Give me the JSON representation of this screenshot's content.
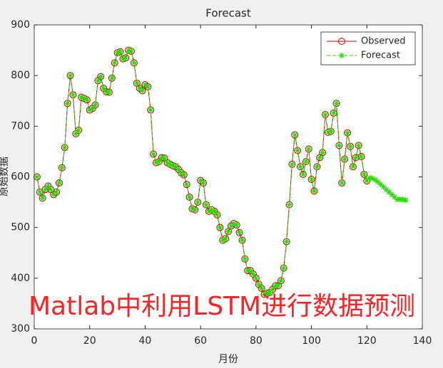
{
  "chart_data": {
    "type": "line",
    "title": "Forecast",
    "xlabel": "月份",
    "ylabel": "原始数据",
    "annotation": "Matlab中利用LSTM进行数据预测",
    "x": [
      1,
      2,
      3,
      4,
      5,
      6,
      7,
      8,
      9,
      10,
      11,
      12,
      13,
      14,
      15,
      16,
      17,
      18,
      19,
      20,
      21,
      22,
      23,
      24,
      25,
      26,
      27,
      28,
      29,
      30,
      31,
      32,
      33,
      34,
      35,
      36,
      37,
      38,
      39,
      40,
      41,
      42,
      43,
      44,
      45,
      46,
      47,
      48,
      49,
      50,
      51,
      52,
      53,
      54,
      55,
      56,
      57,
      58,
      59,
      60,
      61,
      62,
      63,
      64,
      65,
      66,
      67,
      68,
      69,
      70,
      71,
      72,
      73,
      74,
      75,
      76,
      77,
      78,
      79,
      80,
      81,
      82,
      83,
      84,
      85,
      86,
      87,
      88,
      89,
      90,
      91,
      92,
      93,
      94,
      95,
      96,
      97,
      98,
      99,
      100,
      101,
      102,
      103,
      104,
      105,
      106,
      107,
      108,
      109,
      110,
      111,
      112,
      113,
      114,
      115,
      116,
      117,
      118,
      119,
      120,
      121,
      122,
      123,
      124,
      125,
      126,
      127,
      128,
      129,
      130,
      131,
      132,
      133,
      134
    ],
    "series": [
      {
        "name": "Observed",
        "color": "#d40000",
        "marker": "circle",
        "dash": false,
        "values": [
          600,
          570,
          558,
          575,
          582,
          575,
          565,
          570,
          588,
          618,
          658,
          745,
          800,
          762,
          685,
          692,
          757,
          755,
          752,
          732,
          735,
          742,
          790,
          798,
          775,
          768,
          767,
          795,
          825,
          845,
          847,
          833,
          835,
          850,
          848,
          825,
          785,
          775,
          770,
          782,
          778,
          732,
          645,
          628,
          630,
          638,
          637,
          628,
          625,
          622,
          620,
          615,
          608,
          604,
          585,
          560,
          537,
          535,
          550,
          593,
          588,
          545,
          532,
          535,
          532,
          525,
          500,
          475,
          478,
          492,
          503,
          508,
          505,
          490,
          475,
          438,
          415,
          415,
          408,
          400,
          388,
          380,
          368,
          370,
          372,
          378,
          385,
          385,
          395,
          420,
          472,
          545,
          625,
          683,
          652,
          620,
          605,
          630,
          655,
          595,
          572,
          620,
          638,
          648,
          723,
          688,
          690,
          726,
          745,
          662,
          588,
          635,
          687,
          660,
          620,
          638,
          662,
          640,
          605,
          592,
          null,
          null,
          null,
          null,
          null,
          null,
          null,
          null,
          null,
          null,
          null,
          null,
          null,
          null
        ]
      },
      {
        "name": "Forecast",
        "color": "#22dd00",
        "marker": "asterisk",
        "dash": true,
        "values": [
          600,
          570,
          558,
          575,
          582,
          575,
          565,
          570,
          588,
          618,
          658,
          745,
          800,
          762,
          685,
          692,
          757,
          755,
          752,
          732,
          735,
          742,
          790,
          798,
          775,
          768,
          767,
          795,
          825,
          845,
          847,
          833,
          835,
          850,
          848,
          825,
          785,
          775,
          770,
          782,
          778,
          732,
          645,
          628,
          630,
          638,
          637,
          628,
          625,
          622,
          620,
          615,
          608,
          604,
          585,
          560,
          537,
          535,
          550,
          593,
          588,
          545,
          532,
          535,
          532,
          525,
          500,
          475,
          478,
          492,
          503,
          508,
          505,
          490,
          475,
          438,
          415,
          415,
          408,
          400,
          388,
          380,
          368,
          370,
          372,
          378,
          385,
          385,
          395,
          420,
          472,
          545,
          625,
          683,
          652,
          620,
          605,
          630,
          655,
          595,
          572,
          620,
          638,
          648,
          723,
          688,
          690,
          726,
          745,
          662,
          588,
          635,
          687,
          660,
          620,
          638,
          662,
          640,
          605,
          592,
          598,
          597,
          594,
          590,
          585,
          580,
          575,
          570,
          565,
          560,
          555,
          556,
          555,
          554
        ]
      }
    ],
    "xlim": [
      0,
      140
    ],
    "ylim": [
      300,
      900
    ],
    "xticks": [
      0,
      20,
      40,
      60,
      80,
      100,
      120,
      140
    ],
    "yticks": [
      300,
      400,
      500,
      600,
      700,
      800,
      900
    ],
    "grid": false,
    "legend": "northeast"
  }
}
